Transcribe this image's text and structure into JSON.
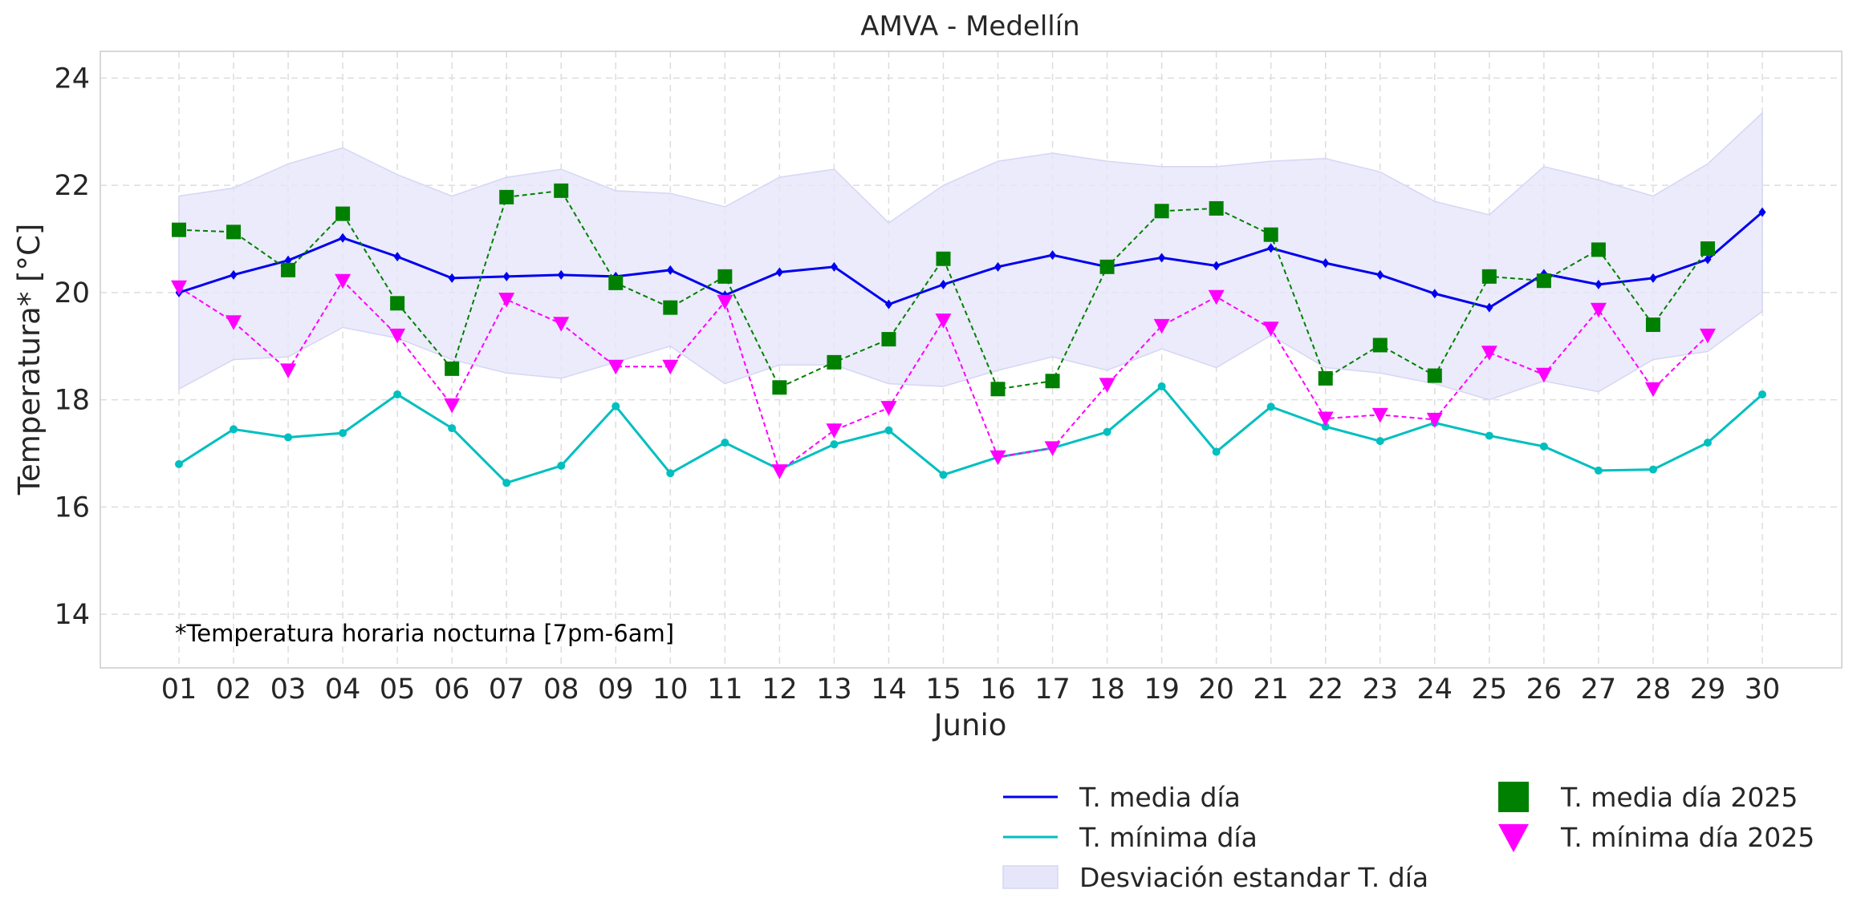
{
  "chart_data": {
    "type": "line",
    "title": "AMVA - Medellín",
    "xlabel": "Junio",
    "ylabel": "Temperatura* [°C]",
    "annotation": "*Temperatura horaria nocturna [7pm-6am]",
    "ylim": [
      13,
      24.5
    ],
    "yticks": [
      14,
      16,
      18,
      20,
      22,
      24
    ],
    "grid": true,
    "legend_position": "bottom-right",
    "categories": [
      "01",
      "02",
      "03",
      "04",
      "05",
      "06",
      "07",
      "08",
      "09",
      "10",
      "11",
      "12",
      "13",
      "14",
      "15",
      "16",
      "17",
      "18",
      "19",
      "20",
      "21",
      "22",
      "23",
      "24",
      "25",
      "26",
      "27",
      "28",
      "29",
      "30"
    ],
    "band": {
      "name": "Desviación estandar T. día",
      "color": "#e6e6fa",
      "upper": [
        21.8,
        21.95,
        22.4,
        22.7,
        22.2,
        21.8,
        22.15,
        22.3,
        21.9,
        21.85,
        21.6,
        22.15,
        22.3,
        21.3,
        22.0,
        22.45,
        22.6,
        22.45,
        22.35,
        22.35,
        22.45,
        22.5,
        22.25,
        21.7,
        21.45,
        22.35,
        22.1,
        21.8,
        22.4,
        23.35
      ],
      "lower": [
        18.2,
        18.75,
        18.8,
        19.35,
        19.15,
        18.75,
        18.5,
        18.4,
        18.7,
        19.0,
        18.3,
        18.65,
        18.65,
        18.3,
        18.25,
        18.55,
        18.8,
        18.55,
        18.95,
        18.6,
        19.2,
        18.6,
        18.5,
        18.3,
        18.0,
        18.35,
        18.15,
        18.75,
        18.9,
        19.65
      ]
    },
    "series": [
      {
        "name": "T. media día",
        "color": "#0000ee",
        "style": "solid",
        "marker": "diamond",
        "values": [
          20.0,
          20.33,
          20.6,
          21.02,
          20.67,
          20.27,
          20.3,
          20.33,
          20.3,
          20.42,
          19.95,
          20.38,
          20.48,
          19.78,
          20.15,
          20.48,
          20.7,
          20.48,
          20.65,
          20.5,
          20.83,
          20.55,
          20.33,
          19.98,
          19.72,
          20.35,
          20.15,
          20.27,
          20.62,
          21.5
        ]
      },
      {
        "name": "T. mínima día",
        "color": "#00bfbf",
        "style": "solid",
        "marker": "circle",
        "values": [
          16.8,
          17.45,
          17.3,
          17.38,
          18.1,
          17.47,
          16.45,
          16.77,
          17.88,
          16.63,
          17.2,
          16.7,
          17.17,
          17.43,
          16.6,
          16.93,
          17.1,
          17.4,
          18.25,
          17.03,
          17.87,
          17.5,
          17.23,
          17.57,
          17.33,
          17.13,
          16.68,
          16.7,
          17.2,
          18.1
        ]
      },
      {
        "name": "T. media día 2025",
        "color": "#008000",
        "style": "dashed",
        "marker": "square",
        "values": [
          21.17,
          21.13,
          20.42,
          21.47,
          19.8,
          18.58,
          21.78,
          21.9,
          20.18,
          19.72,
          20.3,
          18.23,
          18.7,
          19.13,
          20.63,
          18.2,
          18.35,
          20.48,
          21.52,
          21.57,
          21.08,
          18.4,
          19.02,
          18.45,
          20.3,
          20.22,
          20.8,
          19.4,
          20.82,
          null
        ]
      },
      {
        "name": "T. mínima día 2025",
        "color": "#ff00ff",
        "style": "dashed",
        "marker": "triangle-down",
        "values": [
          20.1,
          19.45,
          18.55,
          20.22,
          19.2,
          17.9,
          19.87,
          19.42,
          18.62,
          18.62,
          19.83,
          16.67,
          17.43,
          17.85,
          19.48,
          16.93,
          17.1,
          18.28,
          19.38,
          19.92,
          19.33,
          17.65,
          17.72,
          17.63,
          18.88,
          18.47,
          19.68,
          18.2,
          19.2,
          null
        ]
      }
    ]
  }
}
